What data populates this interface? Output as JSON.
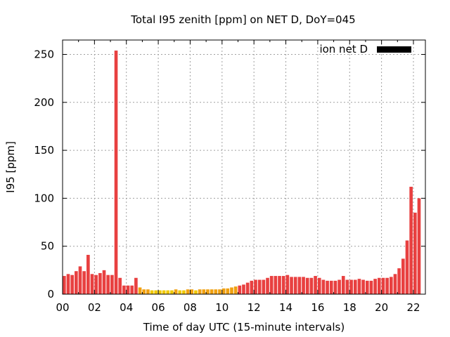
{
  "chart_data": {
    "type": "bar",
    "title": "Total I95 zenith [ppm] on NET D, DoY=045",
    "xlabel": "Time of day UTC (15-minute intervals)",
    "ylabel": "I95 [ppm]",
    "legend": {
      "label": "ion net D",
      "color": "#000000",
      "position": "top-right"
    },
    "xlim": [
      0,
      22.75
    ],
    "ylim": [
      0,
      265
    ],
    "x_ticks": [
      "00",
      "02",
      "04",
      "06",
      "08",
      "10",
      "12",
      "14",
      "16",
      "18",
      "20",
      "22"
    ],
    "y_ticks": [
      0,
      50,
      100,
      150,
      200,
      250
    ],
    "interval_hours": 0.25,
    "colors": {
      "high": "#e84040",
      "mid": "#f0a010",
      "low": "#f0c800"
    },
    "values": [
      19,
      21,
      20,
      24,
      29,
      24,
      41,
      21,
      20,
      22,
      25,
      20,
      20,
      254,
      17,
      9,
      9,
      9,
      17,
      7,
      5,
      5,
      4,
      4,
      4,
      4,
      4,
      4,
      5,
      4,
      4,
      5,
      5,
      4,
      5,
      5,
      5,
      5,
      5,
      5,
      6,
      6,
      7,
      8,
      9,
      10,
      12,
      14,
      15,
      15,
      15,
      17,
      19,
      19,
      19,
      19,
      20,
      18,
      18,
      18,
      18,
      17,
      17,
      19,
      17,
      15,
      14,
      14,
      14,
      15,
      19,
      15,
      15,
      15,
      16,
      15,
      14,
      14,
      16,
      17,
      17,
      17,
      18,
      21,
      27,
      37,
      56,
      112,
      85,
      100
    ]
  }
}
